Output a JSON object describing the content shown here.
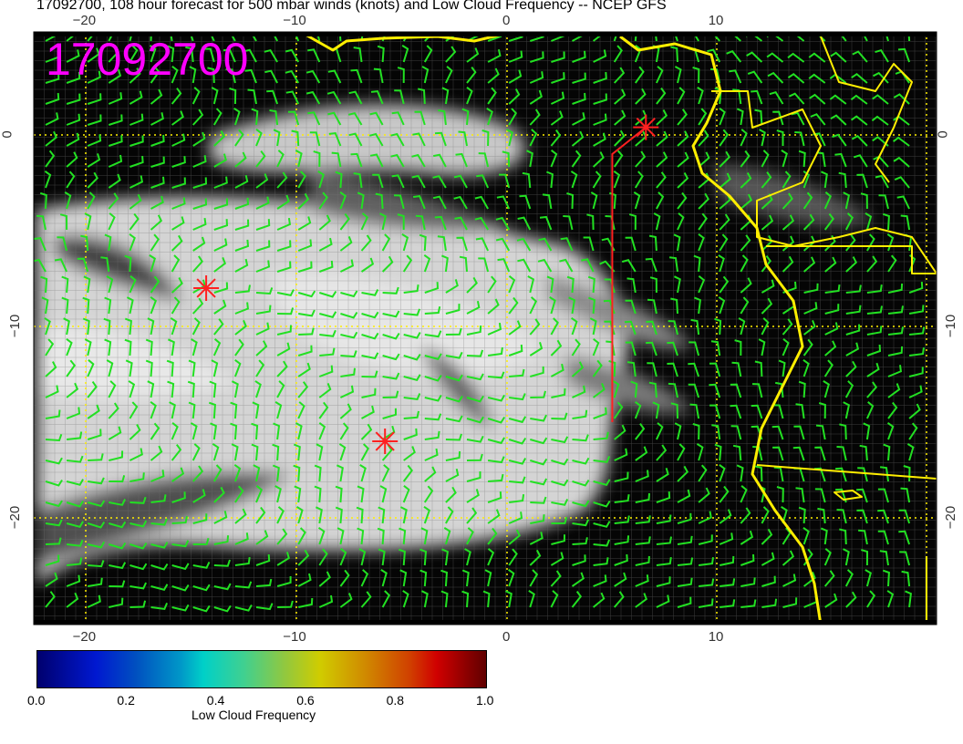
{
  "title": "17092700, 108 hour forecast for 500 mbar winds (knots) and Low Cloud Frequency -- NCEP GFS",
  "map_label": "17092700",
  "map": {
    "lon_range": [
      -22.5,
      20.5
    ],
    "lat_range": [
      -25.6,
      5.4
    ],
    "lon_ticks": [
      "−20",
      "−10",
      "0",
      "10"
    ],
    "lat_ticks": [
      "0",
      "−10",
      "−20"
    ],
    "colors": {
      "wind_barbs": "#22e022",
      "coastline": "#ffee00",
      "markers": "#ff2020",
      "label": "#ff00ff",
      "grid": "#ffee00"
    },
    "markers": [
      {
        "lon": -14.3,
        "lat": -8.0,
        "symbol": "asterisk"
      },
      {
        "lon": -5.8,
        "lat": -16.0,
        "symbol": "asterisk"
      },
      {
        "lon": 6.6,
        "lat": 0.4,
        "symbol": "asterisk"
      }
    ],
    "track": [
      [
        5.0,
        -15.0
      ],
      [
        5.0,
        -1.0
      ],
      [
        6.6,
        0.4
      ]
    ]
  },
  "colorbar": {
    "label": "Low Cloud Frequency",
    "ticks": [
      "0.0",
      "0.2",
      "0.4",
      "0.6",
      "0.8",
      "1.0"
    ],
    "range": [
      0.0,
      1.0
    ]
  }
}
